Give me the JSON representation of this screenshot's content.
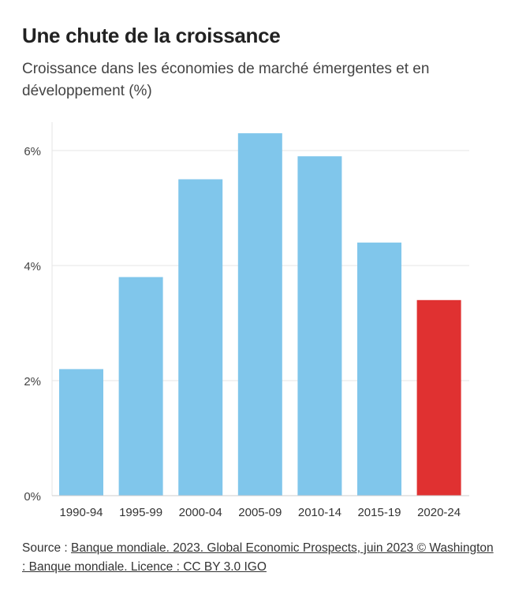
{
  "chart_data": {
    "type": "bar",
    "title": "Une chute de la croissance",
    "subtitle": "Croissance dans les économies de marché émergentes et en développement (%)",
    "categories": [
      "1990-94",
      "1995-99",
      "2000-04",
      "2005-09",
      "2010-14",
      "2015-19",
      "2020-24"
    ],
    "values": [
      2.2,
      3.8,
      5.5,
      6.3,
      5.9,
      4.4,
      3.4
    ],
    "ylim": [
      0,
      6.5
    ],
    "yticks": [
      0,
      2,
      4,
      6
    ],
    "ytick_labels": [
      "0%",
      "2%",
      "4%",
      "6%"
    ],
    "grid": true,
    "colors": {
      "default": "#80c6eb",
      "highlight": "#e03131"
    },
    "highlight_category": "2020-24"
  },
  "source": {
    "prefix": "Source : ",
    "link": "Banque mondiale. 2023. Global Economic Prospects, juin 2023 © Washington : Banque mondiale. Licence : CC BY 3.0 IGO"
  }
}
